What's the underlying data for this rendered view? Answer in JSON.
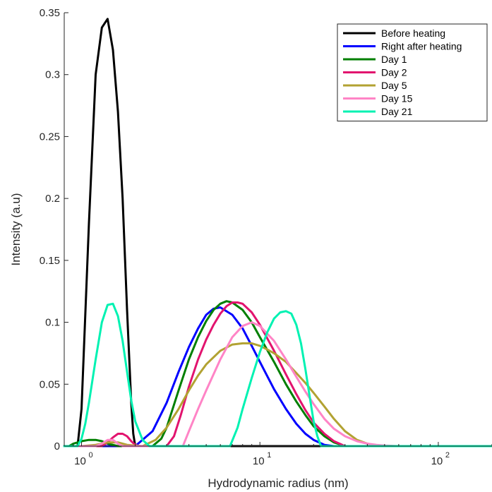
{
  "chart_data": {
    "type": "line",
    "title": "",
    "xlabel": "Hydrodynamic radius (nm)",
    "ylabel": "Intensity (a.u)",
    "xscale": "log",
    "xlim": [
      0.8,
      200
    ],
    "ylim": [
      0,
      0.35
    ],
    "xticks": [
      {
        "value": 1,
        "base": "10",
        "exp": "0"
      },
      {
        "value": 10,
        "base": "10",
        "exp": "1"
      },
      {
        "value": 100,
        "base": "10",
        "exp": "2"
      }
    ],
    "yticks": [
      {
        "value": 0,
        "label": "0"
      },
      {
        "value": 0.05,
        "label": "0.05"
      },
      {
        "value": 0.1,
        "label": "0.1"
      },
      {
        "value": 0.15,
        "label": "0.15"
      },
      {
        "value": 0.2,
        "label": "0.2"
      },
      {
        "value": 0.25,
        "label": "0.25"
      },
      {
        "value": 0.3,
        "label": "0.3"
      },
      {
        "value": 0.35,
        "label": "0.35"
      }
    ],
    "grid": false,
    "legend_position": "top-right",
    "series": [
      {
        "name": "Before heating",
        "color": "#000000",
        "x": [
          0.8,
          0.95,
          1.0,
          1.1,
          1.2,
          1.3,
          1.4,
          1.5,
          1.6,
          1.7,
          1.8,
          1.9,
          1.95,
          2.0,
          200
        ],
        "y": [
          0,
          0,
          0.03,
          0.18,
          0.3,
          0.338,
          0.345,
          0.32,
          0.27,
          0.2,
          0.11,
          0.035,
          0.01,
          0,
          0
        ]
      },
      {
        "name": "Right after heating",
        "color": "#0000ff",
        "x": [
          0.8,
          2.0,
          2.5,
          3.0,
          3.5,
          4.0,
          4.5,
          5.0,
          5.5,
          6.0,
          7.0,
          8.0,
          9.0,
          10.0,
          12.0,
          14.0,
          16.0,
          18.0,
          20.0,
          23.0,
          26.0,
          200
        ],
        "y": [
          0,
          0,
          0.012,
          0.035,
          0.06,
          0.08,
          0.095,
          0.106,
          0.111,
          0.112,
          0.106,
          0.095,
          0.081,
          0.068,
          0.046,
          0.03,
          0.018,
          0.01,
          0.005,
          0.001,
          0,
          0
        ]
      },
      {
        "name": "Day 1",
        "color": "#007f00",
        "x": [
          0.8,
          0.85,
          0.9,
          1.0,
          1.1,
          1.2,
          1.3,
          1.4,
          1.6,
          1.8,
          2.5,
          2.8,
          3.0,
          3.5,
          4.0,
          4.5,
          5.0,
          5.5,
          6.0,
          6.5,
          7.0,
          8.0,
          9.0,
          10.0,
          12.0,
          14.0,
          16.0,
          18.0,
          20.0,
          23.0,
          26.0,
          30.0,
          200
        ],
        "y": [
          0,
          0,
          0.002,
          0.004,
          0.005,
          0.005,
          0.004,
          0.002,
          0,
          0,
          0,
          0.006,
          0.015,
          0.045,
          0.07,
          0.088,
          0.101,
          0.11,
          0.115,
          0.117,
          0.116,
          0.11,
          0.1,
          0.088,
          0.068,
          0.05,
          0.036,
          0.025,
          0.016,
          0.008,
          0.003,
          0,
          0
        ]
      },
      {
        "name": "Day 2",
        "color": "#e2136e",
        "x": [
          0.8,
          1.3,
          1.4,
          1.5,
          1.6,
          1.7,
          1.8,
          1.9,
          2.0,
          2.1,
          3.0,
          3.3,
          3.6,
          4.0,
          4.5,
          5.0,
          5.5,
          6.0,
          6.5,
          7.0,
          7.5,
          8.0,
          9.0,
          10.0,
          12.0,
          14.0,
          16.0,
          18.0,
          20.0,
          23.0,
          26.0,
          30.0,
          200
        ],
        "y": [
          0,
          0,
          0.003,
          0.007,
          0.01,
          0.01,
          0.008,
          0.004,
          0.001,
          0,
          0,
          0.008,
          0.025,
          0.048,
          0.07,
          0.086,
          0.098,
          0.107,
          0.113,
          0.116,
          0.116,
          0.115,
          0.108,
          0.098,
          0.077,
          0.058,
          0.042,
          0.029,
          0.019,
          0.01,
          0.004,
          0,
          0
        ]
      },
      {
        "name": "Day 5",
        "color": "#b2a232",
        "x": [
          0.8,
          1.0,
          1.2,
          1.4,
          1.6,
          1.8,
          2.2,
          2.6,
          3.0,
          3.5,
          4.0,
          4.5,
          5.0,
          6.0,
          7.0,
          8.0,
          9.0,
          10.0,
          11.0,
          12.0,
          14.0,
          16.0,
          18.0,
          20.0,
          23.0,
          26.0,
          30.0,
          35.0,
          40.0,
          45.0,
          200
        ],
        "y": [
          0,
          0,
          0.001,
          0.003,
          0.003,
          0.001,
          0,
          0.005,
          0.015,
          0.03,
          0.045,
          0.057,
          0.066,
          0.077,
          0.082,
          0.083,
          0.083,
          0.081,
          0.078,
          0.075,
          0.068,
          0.059,
          0.051,
          0.043,
          0.032,
          0.022,
          0.012,
          0.005,
          0.002,
          0,
          0
        ]
      },
      {
        "name": "Day 15",
        "color": "#ff84c6",
        "x": [
          0.8,
          1.2,
          1.3,
          1.4,
          1.5,
          1.6,
          1.7,
          3.7,
          4.0,
          4.5,
          5.0,
          6.0,
          7.0,
          8.0,
          9.0,
          10.0,
          12.0,
          14.0,
          16.0,
          18.0,
          20.0,
          23.0,
          26.0,
          30.0,
          35.0,
          40.0,
          45.0,
          50.0,
          60.0,
          200
        ],
        "y": [
          0,
          0,
          0.002,
          0.005,
          0.005,
          0.002,
          0,
          0,
          0.012,
          0.03,
          0.045,
          0.07,
          0.088,
          0.097,
          0.1,
          0.097,
          0.085,
          0.07,
          0.056,
          0.044,
          0.034,
          0.022,
          0.014,
          0.008,
          0.004,
          0.002,
          0.001,
          0.0005,
          0,
          0
        ]
      },
      {
        "name": "Day 21",
        "color": "#00f2b2",
        "x": [
          0.8,
          0.95,
          1.0,
          1.05,
          1.1,
          1.2,
          1.3,
          1.4,
          1.5,
          1.6,
          1.7,
          1.8,
          1.9,
          2.0,
          2.2,
          2.4,
          6.8,
          7.5,
          8.0,
          9.0,
          10.0,
          11.0,
          12.0,
          13.0,
          14.0,
          15.0,
          16.0,
          17.0,
          18.0,
          19.0,
          20.0,
          21.0,
          22.0,
          200
        ],
        "y": [
          0,
          0,
          0.006,
          0.018,
          0.035,
          0.07,
          0.1,
          0.114,
          0.115,
          0.105,
          0.085,
          0.06,
          0.037,
          0.02,
          0.005,
          0,
          0,
          0.015,
          0.03,
          0.055,
          0.076,
          0.092,
          0.103,
          0.108,
          0.109,
          0.107,
          0.098,
          0.083,
          0.062,
          0.04,
          0.02,
          0.008,
          0,
          0
        ]
      }
    ]
  }
}
